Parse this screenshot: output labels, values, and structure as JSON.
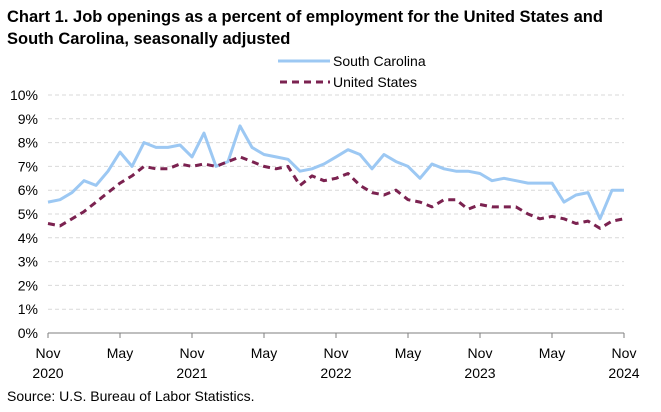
{
  "chart_data": {
    "type": "line",
    "title": "Chart 1. Job openings as a percent of employment for the United States and South Carolina, seasonally adjusted",
    "source": "Source: U.S. Bureau of Labor Statistics.",
    "ylim": [
      0,
      10
    ],
    "yticks": [
      "0%",
      "1%",
      "2%",
      "3%",
      "4%",
      "5%",
      "6%",
      "7%",
      "8%",
      "9%",
      "10%"
    ],
    "xticks": [
      {
        "index": 0,
        "month": "Nov",
        "year": "2020"
      },
      {
        "index": 6,
        "month": "May",
        "year": ""
      },
      {
        "index": 12,
        "month": "Nov",
        "year": "2021"
      },
      {
        "index": 18,
        "month": "May",
        "year": ""
      },
      {
        "index": 24,
        "month": "Nov",
        "year": "2022"
      },
      {
        "index": 30,
        "month": "May",
        "year": ""
      },
      {
        "index": 36,
        "month": "Nov",
        "year": "2023"
      },
      {
        "index": 42,
        "month": "May",
        "year": ""
      },
      {
        "index": 48,
        "month": "Nov",
        "year": "2024"
      }
    ],
    "legend_position": "top-right",
    "series": [
      {
        "name": "South Carolina",
        "color": "#9cc8f3",
        "style": "solid",
        "values": [
          5.5,
          5.6,
          5.9,
          6.4,
          6.2,
          6.8,
          7.6,
          7.0,
          8.0,
          7.8,
          7.8,
          7.9,
          7.4,
          8.4,
          7.0,
          7.2,
          8.7,
          7.8,
          7.5,
          7.4,
          7.3,
          6.8,
          6.9,
          7.1,
          7.4,
          7.7,
          7.5,
          6.9,
          7.5,
          7.2,
          7.0,
          6.5,
          7.1,
          6.9,
          6.8,
          6.8,
          6.7,
          6.4,
          6.5,
          6.4,
          6.3,
          6.3,
          6.3,
          5.5,
          5.8,
          5.9,
          4.8,
          6.0,
          6.0
        ]
      },
      {
        "name": "United States",
        "color": "#7b2250",
        "style": "dashed",
        "values": [
          4.6,
          4.5,
          4.8,
          5.1,
          5.5,
          5.9,
          6.3,
          6.6,
          7.0,
          6.9,
          6.9,
          7.1,
          7.0,
          7.1,
          7.0,
          7.2,
          7.4,
          7.2,
          7.0,
          6.9,
          7.0,
          6.2,
          6.6,
          6.4,
          6.5,
          6.7,
          6.2,
          5.9,
          5.8,
          6.0,
          5.6,
          5.5,
          5.3,
          5.6,
          5.6,
          5.2,
          5.4,
          5.3,
          5.3,
          5.3,
          5.0,
          4.8,
          4.9,
          4.8,
          4.6,
          4.7,
          4.4,
          4.7,
          4.8
        ]
      }
    ]
  }
}
